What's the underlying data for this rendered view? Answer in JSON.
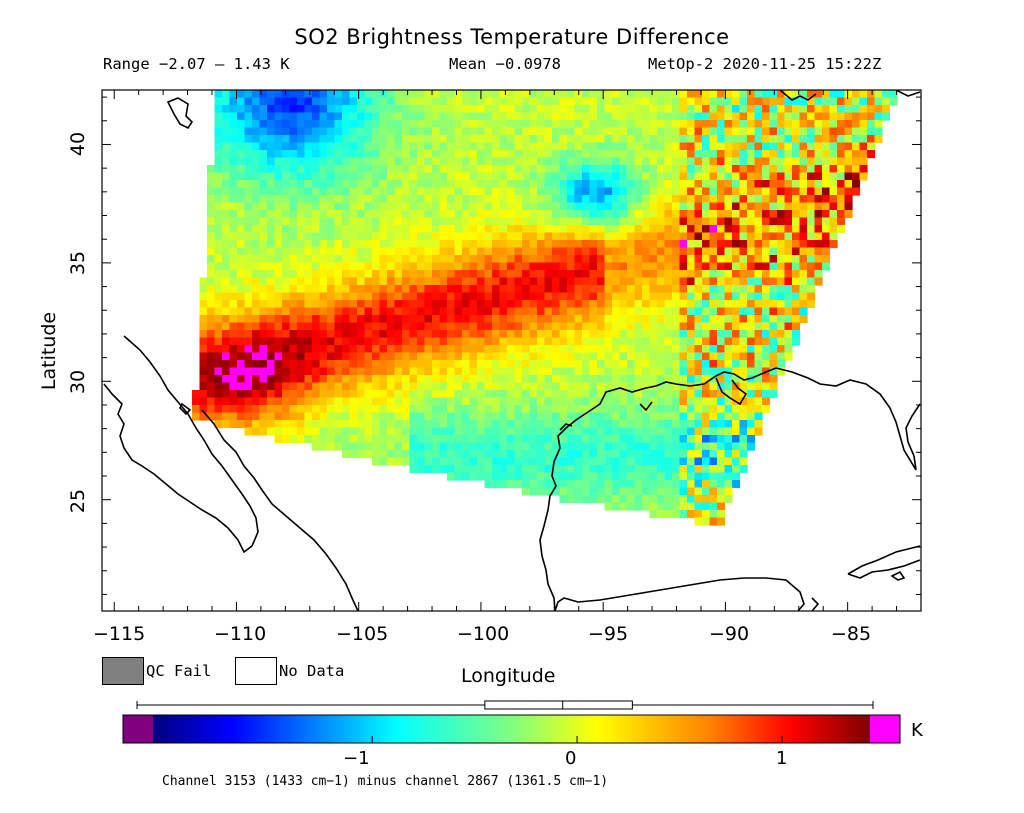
{
  "header": {
    "title": "SO2 Brightness Temperature Difference",
    "range": "Range −2.07 – 1.43 K",
    "mean": "Mean −0.0978",
    "satellite": "MetOp-2 2020-11-25 15:22Z"
  },
  "axes": {
    "xlabel": "Longitude",
    "ylabel": "Latitude",
    "x_ticks": [
      "−115",
      "−110",
      "−105",
      "−100",
      "−95",
      "−90",
      "−85"
    ],
    "y_ticks": [
      "40",
      "35",
      "30",
      "25"
    ],
    "xlim": [
      -115.5,
      -82
    ],
    "ylim": [
      20.3,
      42.3
    ]
  },
  "legend": {
    "qc_fail": "QC Fail",
    "no_data": "No Data",
    "qc_fail_color": "#808080",
    "no_data_color": "#ffffff"
  },
  "colorbar": {
    "unit": "K",
    "ticks": [
      "−1",
      "0",
      "1"
    ],
    "tick_values": [
      -1,
      0,
      1
    ],
    "range": [
      -2.07,
      1.43
    ],
    "under_color": "#800080",
    "over_color": "#ff00ff",
    "boxplot": {
      "min": -2.07,
      "q1": -0.45,
      "median": -0.07,
      "q3": 0.27,
      "max": 1.43
    }
  },
  "footnote": "Channel 3153 (1433 cm−1) minus channel 2867 (1361.5 cm−1)"
}
